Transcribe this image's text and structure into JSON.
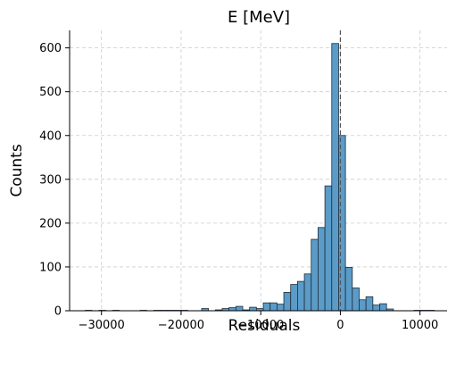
{
  "chart_data": {
    "type": "bar",
    "title": "E [MeV]",
    "xlabel": "Residuals",
    "ylabel": "Counts",
    "xlim": [
      -34000,
      13400
    ],
    "ylim": [
      0,
      640
    ],
    "xticks": [
      -30000,
      -20000,
      -10000,
      0,
      10000
    ],
    "xtick_labels": [
      "−30000",
      "−20000",
      "−10000",
      "0",
      "10000"
    ],
    "yticks": [
      0,
      100,
      200,
      300,
      400,
      500,
      600
    ],
    "ytick_labels": [
      "0",
      "100",
      "200",
      "300",
      "400",
      "500",
      "600"
    ],
    "grid": true,
    "bar_color": "#5b9bc8",
    "edge_color": "#1f2d3a",
    "reference_line_x": 0,
    "bin_width": 860,
    "bins": [
      {
        "x": -32040,
        "count": 1
      },
      {
        "x": -31180,
        "count": 0
      },
      {
        "x": -30320,
        "count": 1
      },
      {
        "x": -29460,
        "count": 0
      },
      {
        "x": -28600,
        "count": 1
      },
      {
        "x": -27740,
        "count": 0
      },
      {
        "x": -26880,
        "count": 0
      },
      {
        "x": -26020,
        "count": 0
      },
      {
        "x": -25160,
        "count": 1
      },
      {
        "x": -24300,
        "count": 0
      },
      {
        "x": -23440,
        "count": 1
      },
      {
        "x": -22580,
        "count": 1
      },
      {
        "x": -21720,
        "count": 1
      },
      {
        "x": -20860,
        "count": 1
      },
      {
        "x": -20000,
        "count": 1
      },
      {
        "x": -19140,
        "count": 0
      },
      {
        "x": -18280,
        "count": 0
      },
      {
        "x": -17420,
        "count": 5
      },
      {
        "x": -16560,
        "count": 0
      },
      {
        "x": -15700,
        "count": 2
      },
      {
        "x": -14840,
        "count": 5
      },
      {
        "x": -13980,
        "count": 7
      },
      {
        "x": -13120,
        "count": 10
      },
      {
        "x": -12260,
        "count": 2
      },
      {
        "x": -11400,
        "count": 8
      },
      {
        "x": -10540,
        "count": 5
      },
      {
        "x": -9680,
        "count": 18
      },
      {
        "x": -8820,
        "count": 18
      },
      {
        "x": -7960,
        "count": 15
      },
      {
        "x": -7100,
        "count": 42
      },
      {
        "x": -6240,
        "count": 60
      },
      {
        "x": -5380,
        "count": 67
      },
      {
        "x": -4520,
        "count": 84
      },
      {
        "x": -3660,
        "count": 163
      },
      {
        "x": -2800,
        "count": 190
      },
      {
        "x": -1940,
        "count": 285
      },
      {
        "x": -1080,
        "count": 610
      },
      {
        "x": -220,
        "count": 400
      },
      {
        "x": 640,
        "count": 99
      },
      {
        "x": 1500,
        "count": 52
      },
      {
        "x": 2360,
        "count": 25
      },
      {
        "x": 3220,
        "count": 32
      },
      {
        "x": 4080,
        "count": 13
      },
      {
        "x": 4940,
        "count": 16
      },
      {
        "x": 5800,
        "count": 4
      },
      {
        "x": 6660,
        "count": 0
      },
      {
        "x": 7520,
        "count": 0
      },
      {
        "x": 8380,
        "count": 0
      },
      {
        "x": 9240,
        "count": 1
      },
      {
        "x": 10100,
        "count": 1
      },
      {
        "x": 10960,
        "count": 1
      }
    ]
  }
}
